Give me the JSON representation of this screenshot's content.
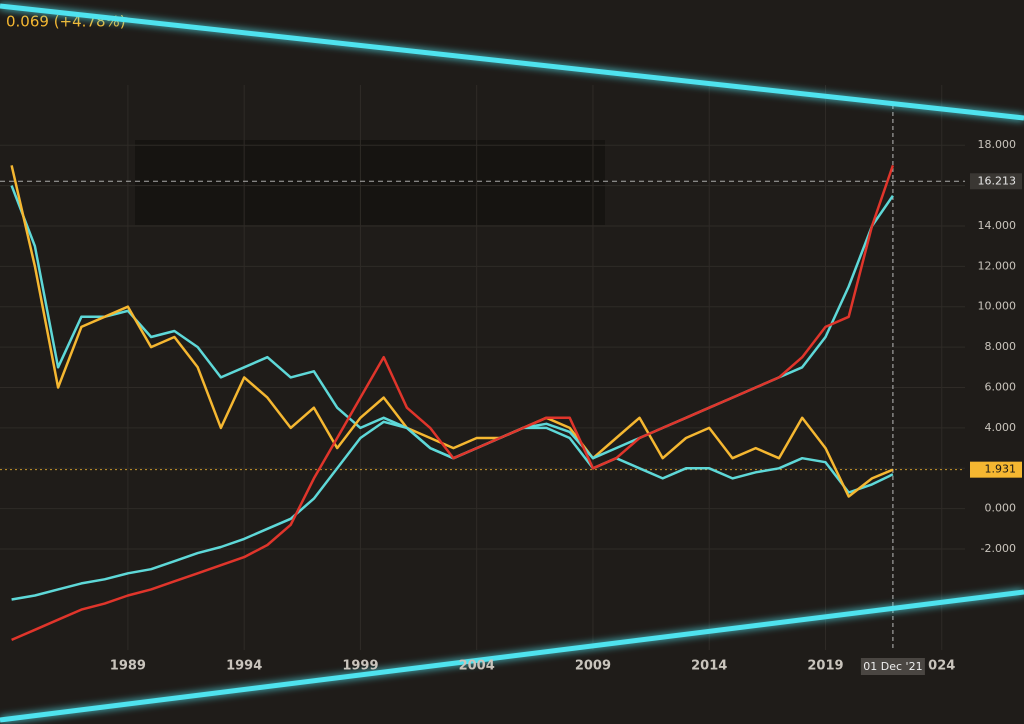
{
  "chart_data": {
    "type": "line",
    "header_text": "0.069 (+4.78%)",
    "x": [
      1984,
      1985,
      1986,
      1987,
      1988,
      1989,
      1990,
      1991,
      1992,
      1993,
      1994,
      1995,
      1996,
      1997,
      1998,
      1999,
      2000,
      2001,
      2002,
      2003,
      2004,
      2005,
      2006,
      2007,
      2008,
      2009,
      2010,
      2011,
      2012,
      2013,
      2014,
      2015,
      2016,
      2017,
      2018,
      2019,
      2020,
      2021,
      2021.9
    ],
    "series": [
      {
        "color": "#5ed8d8",
        "values": [
          16,
          13,
          7,
          9.5,
          9.5,
          9.8,
          8.5,
          8.8,
          8,
          6.5,
          7,
          7.5,
          6.5,
          6.8,
          5,
          4,
          4.5,
          4,
          3,
          2.5,
          3,
          3.5,
          4,
          4,
          3.5,
          2,
          2.5,
          2,
          1.5,
          2,
          2,
          1.5,
          1.8,
          2,
          2.5,
          2.3,
          0.8,
          1.2,
          1.7
        ]
      },
      {
        "color": "#f5b731",
        "values": [
          17,
          12,
          6,
          9,
          9.5,
          10,
          8,
          8.5,
          7,
          4,
          6.5,
          5.5,
          4,
          5,
          3,
          4.5,
          5.5,
          4,
          3.5,
          3,
          3.5,
          3.5,
          4,
          4.5,
          4,
          2.5,
          3.5,
          4.5,
          2.5,
          3.5,
          4,
          2.5,
          3,
          2.5,
          4.5,
          3,
          0.6,
          1.5,
          1.931
        ]
      },
      {
        "color": "#5ed8d8",
        "values": [
          -4.5,
          -4.3,
          -4,
          -3.7,
          -3.5,
          -3.2,
          -3,
          -2.6,
          -2.2,
          -1.9,
          -1.5,
          -1,
          -0.5,
          0.5,
          2,
          3.5,
          4.3,
          4,
          3,
          2.5,
          3,
          3.5,
          4,
          4.2,
          3.8,
          2.5,
          3,
          3.5,
          4,
          4.5,
          5,
          5.5,
          6,
          6.5,
          7,
          8.5,
          11,
          14,
          15.5
        ]
      },
      {
        "color": "#e0352b",
        "values": [
          -6.5,
          -6,
          -5.5,
          -5,
          -4.7,
          -4.3,
          -4,
          -3.6,
          -3.2,
          -2.8,
          -2.4,
          -1.8,
          -0.8,
          1.5,
          3.5,
          5.5,
          7.5,
          5,
          4,
          2.5,
          3,
          3.5,
          4,
          4.5,
          4.5,
          2,
          2.5,
          3.5,
          4,
          4.5,
          5,
          5.5,
          6,
          6.5,
          7.5,
          9,
          9.5,
          14,
          17
        ]
      }
    ],
    "xlim": [
      1983.5,
      2025
    ],
    "xticks": [
      1989,
      1994,
      1999,
      2004,
      2009,
      2014,
      2019,
      {
        "value": 2024,
        "label": "024"
      }
    ],
    "ylim": [
      -7,
      19
    ],
    "yticks": [
      {
        "value": -2,
        "label": "-2.000"
      },
      {
        "value": 0,
        "label": "0.000"
      },
      {
        "value": 2,
        "label": "2.000"
      },
      {
        "value": 4,
        "label": "4.000"
      },
      {
        "value": 6,
        "label": "6.000"
      },
      {
        "value": 8,
        "label": "8.000"
      },
      {
        "value": 10,
        "label": "10.000"
      },
      {
        "value": 12,
        "label": "12.000"
      },
      {
        "value": 14,
        "label": "14.000"
      },
      {
        "value": 16,
        "label": "16.000"
      },
      {
        "value": 18,
        "label": "18.000"
      }
    ],
    "price_labels": [
      16.213,
      1.931
    ],
    "crosshair": {
      "value": 2021.9,
      "label": "01 Dec '21"
    },
    "grid": true
  }
}
